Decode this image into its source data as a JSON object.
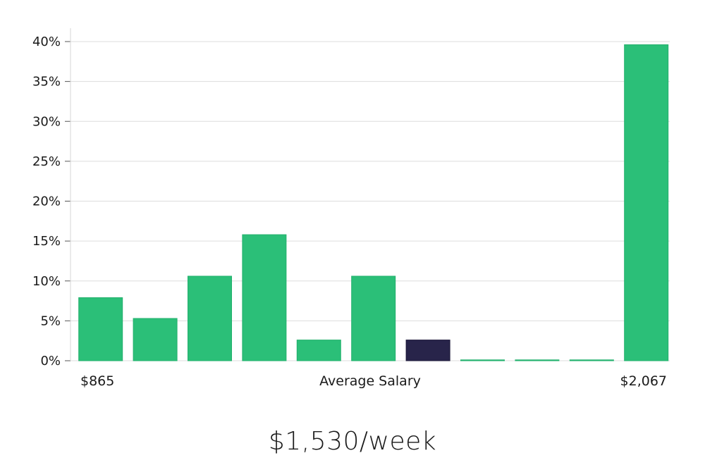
{
  "chart_data": {
    "type": "bar",
    "ylabel_ticks": [
      "0%",
      "5%",
      "10%",
      "15%",
      "20%",
      "25%",
      "30%",
      "35%",
      "40%"
    ],
    "ylim": [
      0,
      40
    ],
    "values": [
      7.9,
      5.3,
      10.6,
      15.8,
      2.6,
      10.6,
      2.6,
      0,
      0,
      0,
      39.6
    ],
    "highlight_index": 6,
    "x_min_label": "$865",
    "x_center_label": "Average Salary",
    "x_max_label": "$2,067",
    "grid": true,
    "colors": {
      "bar": "#2bbf78",
      "highlight": "#28244a",
      "grid": "#dddddd",
      "axis": "#cccccc"
    }
  },
  "salary_text": "$1,530/week"
}
